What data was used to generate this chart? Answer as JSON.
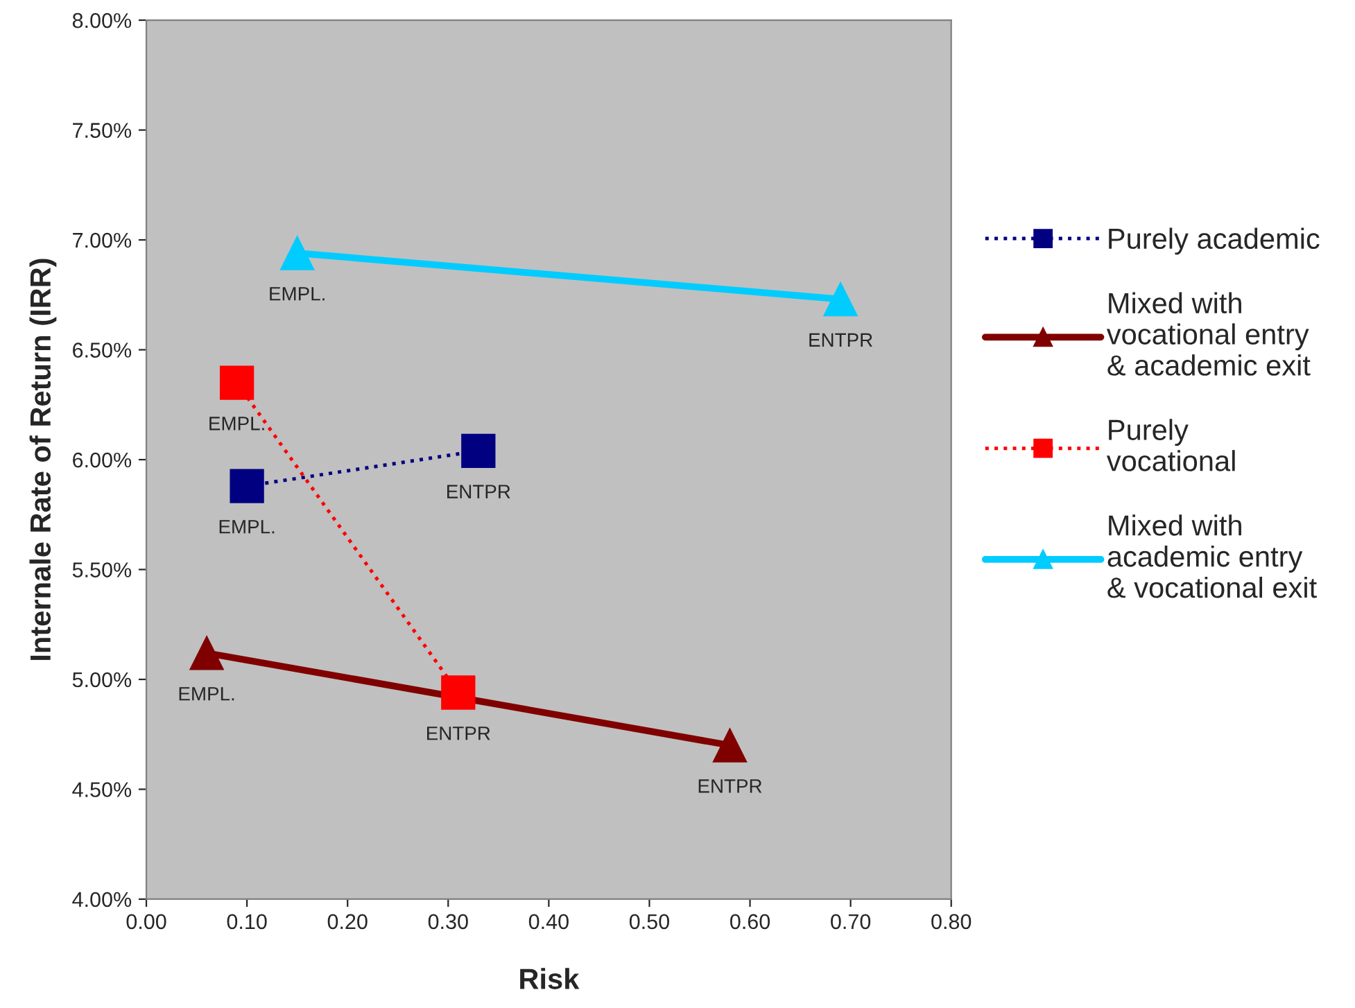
{
  "chart_data": {
    "type": "line",
    "xlabel": "Risk",
    "ylabel": "Internale Rate of Return (IRR)",
    "xlim": [
      0,
      0.8
    ],
    "xticks": [
      {
        "value": 0,
        "label": "0.00"
      },
      {
        "value": 0.1,
        "label": "0.10"
      },
      {
        "value": 0.2,
        "label": "0.20"
      },
      {
        "value": 0.3,
        "label": "0.30"
      },
      {
        "value": 0.4,
        "label": "0.40"
      },
      {
        "value": 0.5,
        "label": "0.50"
      },
      {
        "value": 0.6,
        "label": "0.60"
      },
      {
        "value": 0.7,
        "label": "0.70"
      },
      {
        "value": 0.8,
        "label": "0.80"
      }
    ],
    "ylim": [
      4,
      8
    ],
    "yticks": [
      {
        "value": 4,
        "label": "4.00%"
      },
      {
        "value": 4.5,
        "label": "4.50%"
      },
      {
        "value": 5,
        "label": "5.00%"
      },
      {
        "value": 5.5,
        "label": "5.50%"
      },
      {
        "value": 6,
        "label": "6.00%"
      },
      {
        "value": 6.5,
        "label": "6.50%"
      },
      {
        "value": 7,
        "label": "7.00%"
      },
      {
        "value": 7.5,
        "label": "7.50%"
      },
      {
        "value": 8,
        "label": "8.00%"
      }
    ],
    "grid": false,
    "legend": "right",
    "series": [
      {
        "name": "Purely academic",
        "color": "#000080",
        "x": [
          0.1,
          0.33
        ],
        "values": [
          5.88,
          6.04
        ],
        "marker": "square",
        "line_style": "dotted"
      },
      {
        "name": "Mixed with\nvocational entry\n& academic exit",
        "color": "#800000",
        "x": [
          0.06,
          0.58
        ],
        "values": [
          5.12,
          4.7
        ],
        "marker": "triangle",
        "line_style": "solid"
      },
      {
        "name": "Purely\nvocational",
        "color": "#ff0000",
        "x": [
          0.09,
          0.31
        ],
        "values": [
          6.35,
          4.94
        ],
        "marker": "square",
        "line_style": "dotted"
      },
      {
        "name": "Mixed with\nacademic entry\n& vocational exit",
        "color": "#00ccff",
        "x": [
          0.15,
          0.69
        ],
        "values": [
          6.94,
          6.73
        ],
        "marker": "triangle",
        "line_style": "solid"
      }
    ],
    "annotations": [
      {
        "text": "EMPL.",
        "x": 0.1,
        "y": 5.88
      },
      {
        "text": "ENTPR",
        "x": 0.33,
        "y": 6.04
      },
      {
        "text": "EMPL.",
        "x": 0.06,
        "y": 5.12
      },
      {
        "text": "ENTPR",
        "x": 0.58,
        "y": 4.7
      },
      {
        "text": "EMPL.",
        "x": 0.09,
        "y": 6.35
      },
      {
        "text": "ENTPR",
        "x": 0.31,
        "y": 4.94
      },
      {
        "text": "EMPL.",
        "x": 0.15,
        "y": 6.94
      },
      {
        "text": "ENTPR",
        "x": 0.69,
        "y": 6.73
      }
    ]
  }
}
